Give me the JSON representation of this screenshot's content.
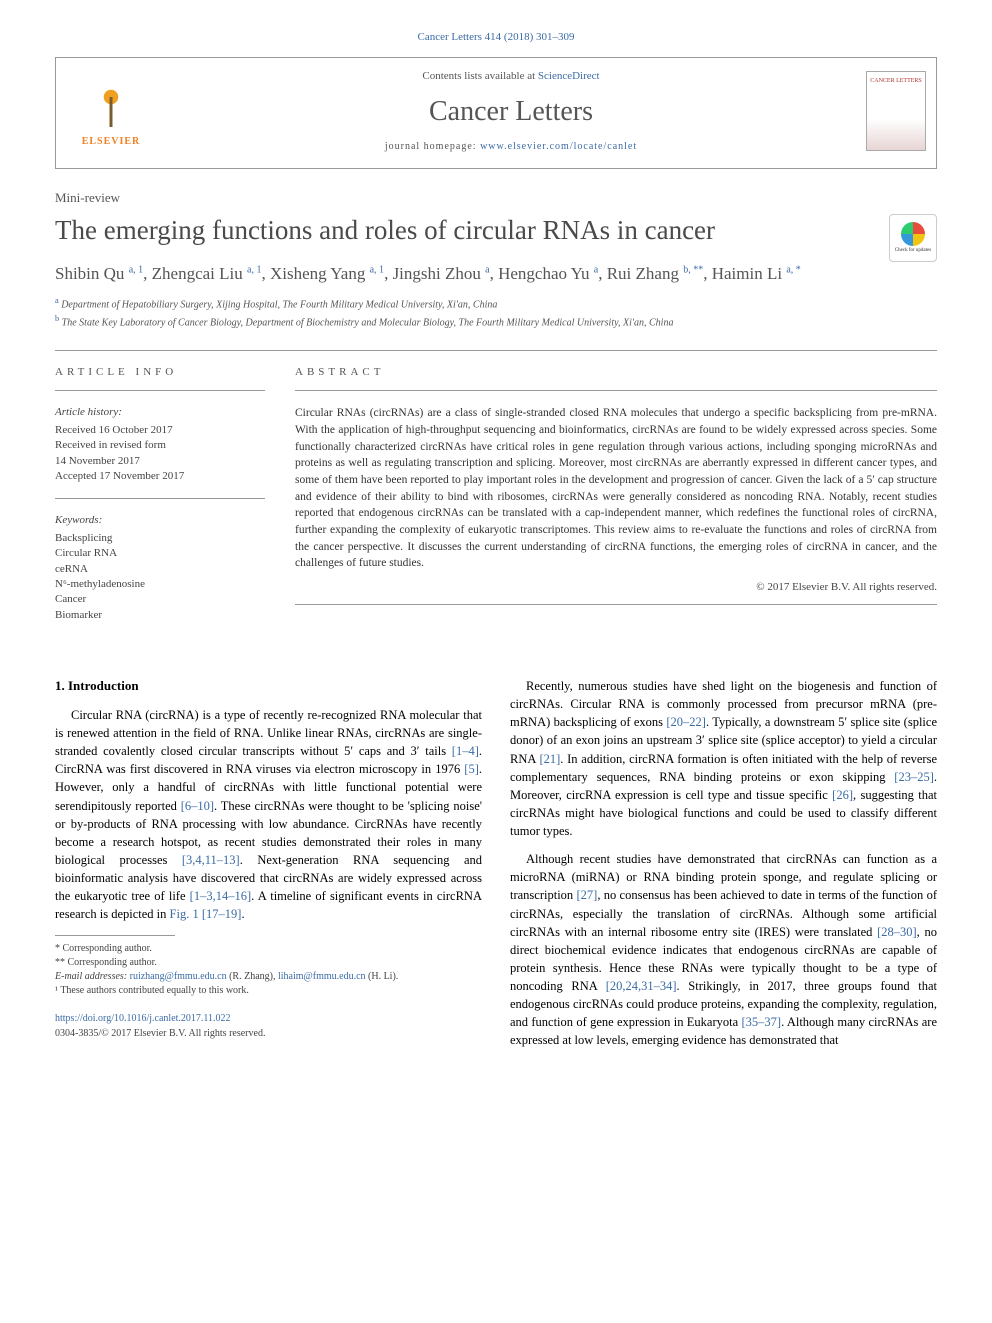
{
  "citation": "Cancer Letters 414 (2018) 301–309",
  "header": {
    "contents_prefix": "Contents lists available at ",
    "contents_link": "ScienceDirect",
    "journal": "Cancer Letters",
    "homepage_prefix": "journal homepage: ",
    "homepage_url": "www.elsevier.com/locate/canlet",
    "publisher": "ELSEVIER",
    "cover_text": "CANCER LETTERS"
  },
  "article_type": "Mini-review",
  "title": "The emerging functions and roles of circular RNAs in cancer",
  "check_updates": "Check for updates",
  "authors_html": "Shibin Qu <sup>a, 1</sup>, Zhengcai Liu <sup>a, 1</sup>, Xisheng Yang <sup>a, 1</sup>, Jingshi Zhou <sup>a</sup>, Hengchao Yu <sup>a</sup>, Rui Zhang <sup>b, **</sup>, Haimin Li <sup>a, *</sup>",
  "affiliations": {
    "a": "Department of Hepatobiliary Surgery, Xijing Hospital, The Fourth Military Medical University, Xi'an, China",
    "b": "The State Key Laboratory of Cancer Biology, Department of Biochemistry and Molecular Biology, The Fourth Military Medical University, Xi'an, China"
  },
  "info": {
    "label": "ARTICLE INFO",
    "history_head": "Article history:",
    "history": "Received 16 October 2017\nReceived in revised form\n14 November 2017\nAccepted 17 November 2017",
    "keywords_head": "Keywords:",
    "keywords": "Backsplicing\nCircular RNA\nceRNA\nN⁶-methyladenosine\nCancer\nBiomarker"
  },
  "abstract": {
    "label": "ABSTRACT",
    "text": "Circular RNAs (circRNAs) are a class of single-stranded closed RNA molecules that undergo a specific backsplicing from pre-mRNA. With the application of high-throughput sequencing and bioinformatics, circRNAs are found to be widely expressed across species. Some functionally characterized circRNAs have critical roles in gene regulation through various actions, including sponging microRNAs and proteins as well as regulating transcription and splicing. Moreover, most circRNAs are aberrantly expressed in different cancer types, and some of them have been reported to play important roles in the development and progression of cancer. Given the lack of a 5′ cap structure and evidence of their ability to bind with ribosomes, circRNAs were generally considered as noncoding RNA. Notably, recent studies reported that endogenous circRNAs can be translated with a cap-independent manner, which redefines the functional roles of circRNA, further expanding the complexity of eukaryotic transcriptomes. This review aims to re-evaluate the functions and roles of circRNA from the cancer perspective. It discusses the current understanding of circRNA functions, the emerging roles of circRNA in cancer, and the challenges of future studies.",
    "copyright": "© 2017 Elsevier B.V. All rights reserved."
  },
  "section1": {
    "heading": "1. Introduction",
    "p1_a": "Circular RNA (circRNA) is a type of recently re-recognized RNA molecular that is renewed attention in the field of RNA. Unlike linear RNAs, circRNAs are single-stranded covalently closed circular transcripts without 5′ caps and 3′ tails ",
    "p1_r1": "[1–4]",
    "p1_b": ". CircRNA was first discovered in RNA viruses via electron microscopy in 1976 ",
    "p1_r2": "[5]",
    "p1_c": ". However, only a handful of circRNAs with little functional potential were serendipitously reported ",
    "p1_r3": "[6–10]",
    "p1_d": ". These circRNAs were thought to be 'splicing noise' or by-products of RNA processing with low abundance. CircRNAs have recently become a research hotspot, as recent studies demonstrated their roles in many biological processes ",
    "p1_r4": "[3,4,11–13]",
    "p1_e": ". Next-generation RNA sequencing and bioinformatic analysis have discovered that circRNAs are widely expressed across the eukaryotic tree of life ",
    "p1_r5": "[1–3,14–16]",
    "p1_f": ". A timeline of significant events in circRNA research is depicted in ",
    "p1_fig": "Fig. 1",
    "p1_g": " ",
    "p1_r6": "[17–19]",
    "p1_h": ".",
    "p2_a": "Recently, numerous studies have shed light on the biogenesis and function of circRNAs. Circular RNA is commonly processed from precursor mRNA (pre-mRNA) backsplicing of exons ",
    "p2_r1": "[20–22]",
    "p2_b": ". Typically, a downstream 5′ splice site (splice donor) of an exon joins an upstream 3′ splice site (splice acceptor) to yield a circular RNA ",
    "p2_r2": "[21]",
    "p2_c": ". In addition, circRNA formation is often initiated with the help of reverse complementary sequences, RNA binding proteins or exon skipping ",
    "p2_r3": "[23–25]",
    "p2_d": ". Moreover, circRNA expression is cell type and tissue specific ",
    "p2_r4": "[26]",
    "p2_e": ", suggesting that circRNAs might have biological functions and could be used to classify different tumor types.",
    "p3_a": "Although recent studies have demonstrated that circRNAs can function as a microRNA (miRNA) or RNA binding protein sponge, and regulate splicing or transcription ",
    "p3_r1": "[27]",
    "p3_b": ", no consensus has been achieved to date in terms of the function of circRNAs, especially the translation of circRNAs. Although some artificial circRNAs with an internal ribosome entry site (IRES) were translated ",
    "p3_r2": "[28–30]",
    "p3_c": ", no direct biochemical evidence indicates that endogenous circRNAs are capable of protein synthesis. Hence these RNAs were typically thought to be a type of noncoding RNA ",
    "p3_r3": "[20,24,31–34]",
    "p3_d": ". Strikingly, in 2017, three groups found that endogenous circRNAs could produce proteins, expanding the complexity, regulation, and function of gene expression in Eukaryota ",
    "p3_r4": "[35–37]",
    "p3_e": ". Although many circRNAs are expressed at low levels, emerging evidence has demonstrated that"
  },
  "footnotes": {
    "c1": "* Corresponding author.",
    "c2": "** Corresponding author.",
    "emails_label": "E-mail addresses: ",
    "e1_addr": "ruizhang@fmmu.edu.cn",
    "e1_name": " (R. Zhang), ",
    "e2_addr": "lihaim@fmmu.edu.cn",
    "e2_name": " (H. Li).",
    "equal": "¹ These authors contributed equally to this work."
  },
  "doi": "https://doi.org/10.1016/j.canlet.2017.11.022",
  "issn": "0304-3835/© 2017 Elsevier B.V. All rights reserved.",
  "colors": {
    "link": "#3b6ba5",
    "text": "#333333",
    "heading": "#4a4a4a",
    "publisher": "#f08020"
  }
}
